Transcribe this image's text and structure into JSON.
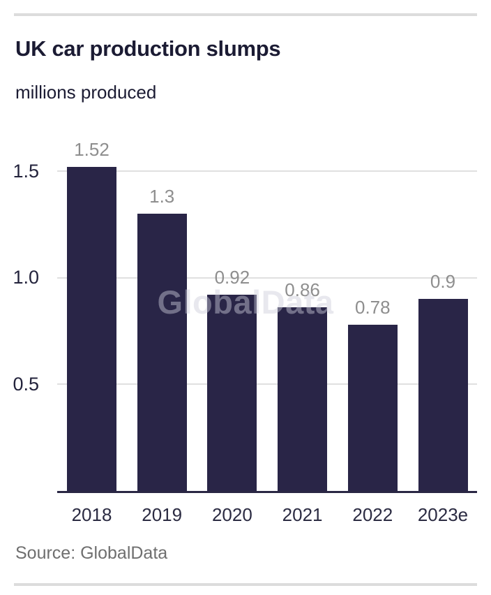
{
  "header": {
    "title": "UK car production slumps",
    "subtitle": "millions produced"
  },
  "watermark": "GlobalData",
  "source": "Source: GlobalData",
  "colors": {
    "bar": "#292547",
    "title_text": "#1b1b33",
    "tick_text": "#23233c",
    "axis_line": "#2a2744",
    "value_label": "#8e8e8e",
    "gridline": "#e0e0e0",
    "rule": "#dcdcdc",
    "source_text": "#6f6f6f"
  },
  "chart_data": {
    "type": "bar",
    "title": "UK car production slumps",
    "subtitle": "millions produced",
    "categories": [
      "2018",
      "2019",
      "2020",
      "2021",
      "2022",
      "2023e"
    ],
    "values": [
      1.52,
      1.3,
      0.92,
      0.86,
      0.78,
      0.9
    ],
    "value_labels": [
      "1.52",
      "1.3",
      "0.92",
      "0.86",
      "0.78",
      "0.9"
    ],
    "xlabel": "",
    "ylabel": "millions produced",
    "ylim": [
      0,
      1.65
    ],
    "yticks": [
      0.5,
      1.0,
      1.5
    ],
    "ytick_labels": [
      "0.5",
      "1.0",
      "1.5"
    ],
    "grid": true,
    "legend": false,
    "source": "Source: GlobalData",
    "watermark": "GlobalData"
  }
}
